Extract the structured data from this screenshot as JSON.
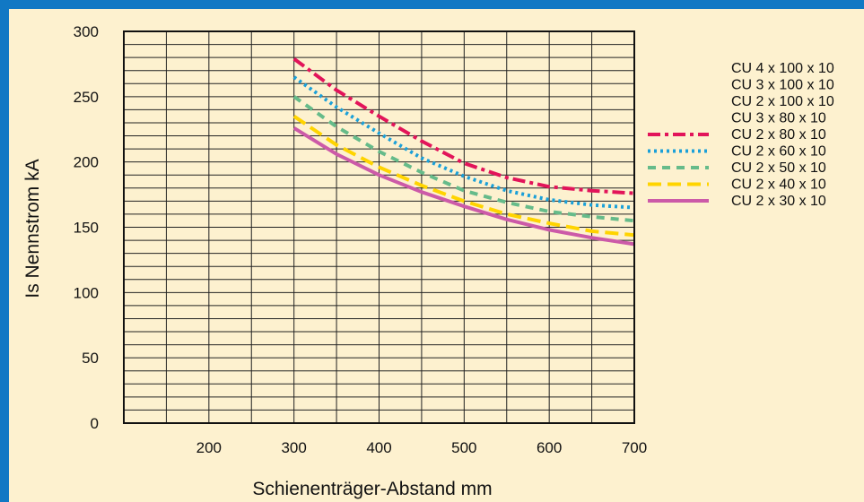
{
  "chart_data": {
    "type": "line",
    "title": "",
    "xlabel": "Schienenträger-Abstand   mm",
    "ylabel": "Is Nennstrom kA",
    "xlim": [
      100,
      700
    ],
    "ylim": [
      0,
      300
    ],
    "xticks": [
      "200",
      "300",
      "400",
      "500",
      "600",
      "700"
    ],
    "yticks": [
      "0",
      "50",
      "100",
      "150",
      "200",
      "250",
      "300"
    ],
    "grid": true,
    "legend_position": "right",
    "legend_entries": [
      "CU 4 x 100 x 10",
      "CU 3 x 100 x 10",
      "CU 2 x 100 x 10",
      "CU 3 x 80 x 10",
      "CU 2 x 80 x 10",
      "CU 2 x 60 x 10",
      "CU 2 x 50 x 10",
      "CU 2 x 40 x 10",
      "CU 2 x 30 x 10"
    ],
    "x": [
      300,
      350,
      400,
      450,
      500,
      550,
      600,
      650,
      700
    ],
    "series": [
      {
        "name": "CU 2 x 80 x 10",
        "color": "#e2145a",
        "dash": "dash-dot",
        "values": [
          279,
          255,
          235,
          216,
          199,
          188,
          181,
          178,
          176
        ]
      },
      {
        "name": "CU 2 x 60 x 10",
        "color": "#1ba0d8",
        "dash": "dotted",
        "values": [
          265,
          242,
          222,
          203,
          189,
          178,
          171,
          167,
          165
        ]
      },
      {
        "name": "CU 2 x 50 x 10",
        "color": "#66bb8a",
        "dash": "dashed",
        "values": [
          250,
          227,
          208,
          192,
          178,
          169,
          162,
          158,
          155
        ]
      },
      {
        "name": "CU 2 x 40 x 10",
        "color": "#ffd400",
        "dash": "long-dash",
        "values": [
          235,
          213,
          196,
          182,
          170,
          160,
          153,
          147,
          144
        ]
      },
      {
        "name": "CU 2 x 30 x 10",
        "color": "#cc5aa8",
        "dash": "solid",
        "values": [
          226,
          206,
          190,
          177,
          166,
          156,
          148,
          142,
          137
        ]
      }
    ]
  }
}
